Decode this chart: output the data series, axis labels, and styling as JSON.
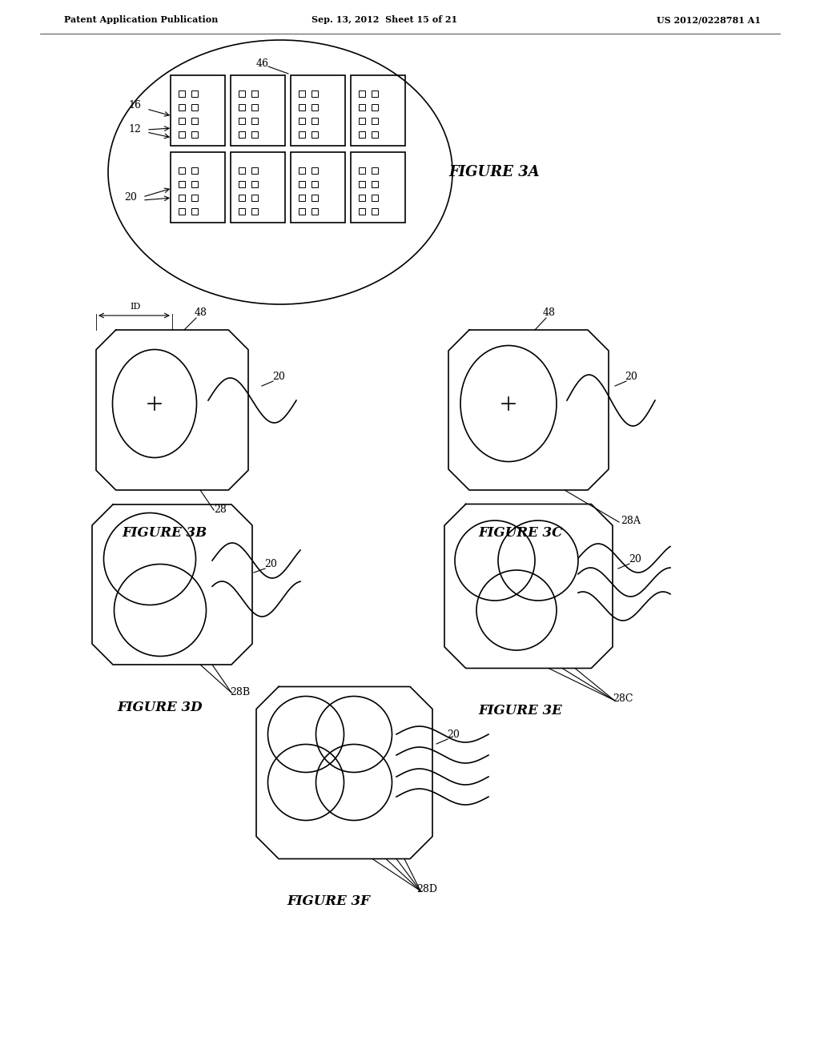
{
  "header_left": "Patent Application Publication",
  "header_mid": "Sep. 13, 2012  Sheet 15 of 21",
  "header_right": "US 2012/0228781 A1",
  "background": "#ffffff",
  "line_color": "#000000",
  "fig3a_label": "FIGURE 3A",
  "fig3b_label": "FIGURE 3B",
  "fig3c_label": "FIGURE 3C",
  "fig3d_label": "FIGURE 3D",
  "fig3e_label": "FIGURE 3E",
  "fig3f_label": "FIGURE 3F"
}
